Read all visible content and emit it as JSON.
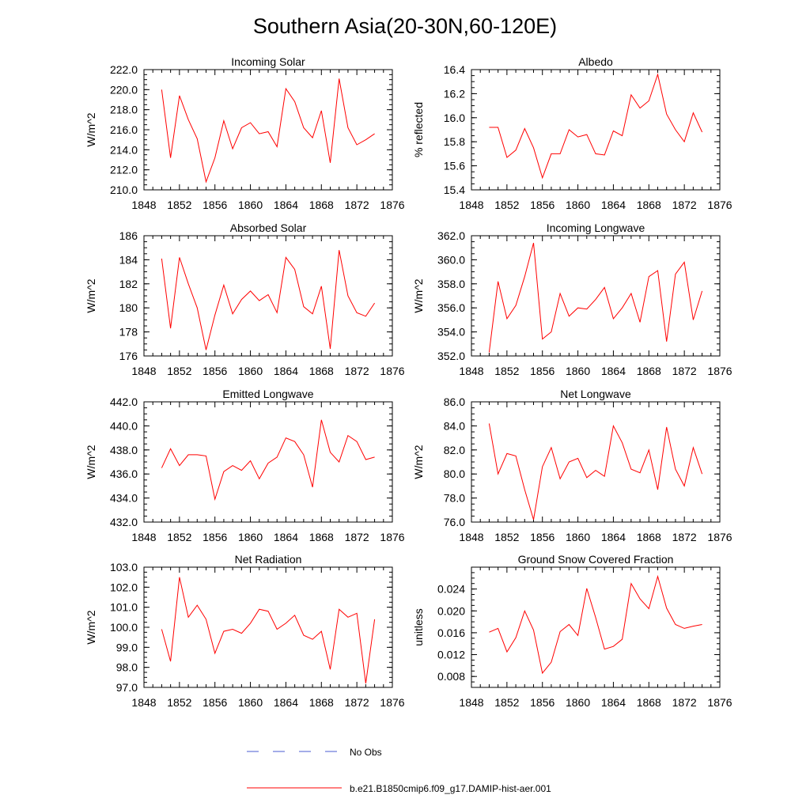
{
  "figure_title": "Southern Asia(20-30N,60-120E)",
  "legend": [
    {
      "label": "No Obs",
      "color": "#4a5bd0",
      "style": "dashed"
    },
    {
      "label": "b.e21.B1850cmip6.f09_g17.DAMIP-hist-aer.001",
      "color": "#ff0000",
      "style": "solid"
    }
  ],
  "chart_data": [
    {
      "type": "line",
      "title": "Incoming Solar",
      "ylabel": "W/m^2",
      "xlim": [
        1848,
        1876
      ],
      "ylim": [
        210,
        222
      ],
      "xticks": [
        "1848",
        "1852",
        "1856",
        "1860",
        "1864",
        "1868",
        "1872",
        "1876"
      ],
      "yticks": [
        "210.0",
        "212.0",
        "214.0",
        "216.0",
        "218.0",
        "220.0",
        "222.0"
      ],
      "x": [
        1850,
        1851,
        1852,
        1853,
        1854,
        1855,
        1856,
        1857,
        1858,
        1859,
        1860,
        1861,
        1862,
        1863,
        1864,
        1865,
        1866,
        1867,
        1868,
        1869,
        1870,
        1871,
        1872,
        1873,
        1874
      ],
      "series": [
        {
          "name": "b.e21.B1850cmip6.f09_g17.DAMIP-hist-aer.001",
          "color": "#ff0000",
          "values": [
            220.0,
            213.2,
            219.4,
            217.0,
            215.1,
            210.8,
            213.2,
            216.9,
            214.1,
            216.2,
            216.7,
            215.6,
            215.8,
            214.3,
            220.1,
            218.8,
            216.2,
            215.2,
            217.9,
            212.7,
            221.1,
            216.2,
            214.5,
            215.0,
            215.6
          ]
        }
      ]
    },
    {
      "type": "line",
      "title": "Albedo",
      "ylabel": "% reflected",
      "xlim": [
        1848,
        1876
      ],
      "ylim": [
        15.4,
        16.4
      ],
      "xticks": [
        "1848",
        "1852",
        "1856",
        "1860",
        "1864",
        "1868",
        "1872",
        "1876"
      ],
      "yticks": [
        "15.4",
        "15.6",
        "15.8",
        "16.0",
        "16.2",
        "16.4"
      ],
      "x": [
        1850,
        1851,
        1852,
        1853,
        1854,
        1855,
        1856,
        1857,
        1858,
        1859,
        1860,
        1861,
        1862,
        1863,
        1864,
        1865,
        1866,
        1867,
        1868,
        1869,
        1870,
        1871,
        1872,
        1873,
        1874
      ],
      "series": [
        {
          "name": "b.e21.B1850cmip6.f09_g17.DAMIP-hist-aer.001",
          "color": "#ff0000",
          "values": [
            15.92,
            15.92,
            15.67,
            15.73,
            15.91,
            15.75,
            15.5,
            15.7,
            15.7,
            15.9,
            15.84,
            15.86,
            15.7,
            15.69,
            15.89,
            15.85,
            16.19,
            16.08,
            16.14,
            16.36,
            16.03,
            15.9,
            15.8,
            16.04,
            15.88
          ]
        }
      ]
    },
    {
      "type": "line",
      "title": "Absorbed Solar",
      "ylabel": "W/m^2",
      "xlim": [
        1848,
        1876
      ],
      "ylim": [
        176,
        186
      ],
      "xticks": [
        "1848",
        "1852",
        "1856",
        "1860",
        "1864",
        "1868",
        "1872",
        "1876"
      ],
      "yticks": [
        "176",
        "178",
        "180",
        "182",
        "184",
        "186"
      ],
      "x": [
        1850,
        1851,
        1852,
        1853,
        1854,
        1855,
        1856,
        1857,
        1858,
        1859,
        1860,
        1861,
        1862,
        1863,
        1864,
        1865,
        1866,
        1867,
        1868,
        1869,
        1870,
        1871,
        1872,
        1873,
        1874
      ],
      "series": [
        {
          "name": "b.e21.B1850cmip6.f09_g17.DAMIP-hist-aer.001",
          "color": "#ff0000",
          "values": [
            184.1,
            178.3,
            184.2,
            182.0,
            180.0,
            176.5,
            179.4,
            181.9,
            179.5,
            180.7,
            181.4,
            180.6,
            181.1,
            179.6,
            184.2,
            183.2,
            180.1,
            179.5,
            181.8,
            176.6,
            184.8,
            181.0,
            179.6,
            179.3,
            180.4
          ]
        }
      ]
    },
    {
      "type": "line",
      "title": "Incoming Longwave",
      "ylabel": "W/m^2",
      "xlim": [
        1848,
        1876
      ],
      "ylim": [
        352,
        362
      ],
      "xticks": [
        "1848",
        "1852",
        "1856",
        "1860",
        "1864",
        "1868",
        "1872",
        "1876"
      ],
      "yticks": [
        "352.0",
        "354.0",
        "356.0",
        "358.0",
        "360.0",
        "362.0"
      ],
      "x": [
        1850,
        1851,
        1852,
        1853,
        1854,
        1855,
        1856,
        1857,
        1858,
        1859,
        1860,
        1861,
        1862,
        1863,
        1864,
        1865,
        1866,
        1867,
        1868,
        1869,
        1870,
        1871,
        1872,
        1873,
        1874
      ],
      "series": [
        {
          "name": "b.e21.B1850cmip6.f09_g17.DAMIP-hist-aer.001",
          "color": "#ff0000",
          "values": [
            352.3,
            358.2,
            355.1,
            356.2,
            358.6,
            361.4,
            353.4,
            354.0,
            357.2,
            355.3,
            356.0,
            355.9,
            356.7,
            357.7,
            355.1,
            356.0,
            357.2,
            354.8,
            358.6,
            359.1,
            353.2,
            358.8,
            359.8,
            355.0,
            357.4
          ]
        }
      ]
    },
    {
      "type": "line",
      "title": "Emitted Longwave",
      "ylabel": "W/m^2",
      "xlim": [
        1848,
        1876
      ],
      "ylim": [
        432,
        442
      ],
      "xticks": [
        "1848",
        "1852",
        "1856",
        "1860",
        "1864",
        "1868",
        "1872",
        "1876"
      ],
      "yticks": [
        "432.0",
        "434.0",
        "436.0",
        "438.0",
        "440.0",
        "442.0"
      ],
      "x": [
        1850,
        1851,
        1852,
        1853,
        1854,
        1855,
        1856,
        1857,
        1858,
        1859,
        1860,
        1861,
        1862,
        1863,
        1864,
        1865,
        1866,
        1867,
        1868,
        1869,
        1870,
        1871,
        1872,
        1873,
        1874
      ],
      "series": [
        {
          "name": "b.e21.B1850cmip6.f09_g17.DAMIP-hist-aer.001",
          "color": "#ff0000",
          "values": [
            436.5,
            438.1,
            436.7,
            437.6,
            437.6,
            437.5,
            433.9,
            436.2,
            436.7,
            436.3,
            437.1,
            435.6,
            436.9,
            437.4,
            439.0,
            438.7,
            437.6,
            434.9,
            440.5,
            437.8,
            437.0,
            439.2,
            438.7,
            437.2,
            437.4
          ]
        }
      ]
    },
    {
      "type": "line",
      "title": "Net Longwave",
      "ylabel": "W/m^2",
      "xlim": [
        1848,
        1876
      ],
      "ylim": [
        76,
        86
      ],
      "xticks": [
        "1848",
        "1852",
        "1856",
        "1860",
        "1864",
        "1868",
        "1872",
        "1876"
      ],
      "yticks": [
        "76.0",
        "78.0",
        "80.0",
        "82.0",
        "84.0",
        "86.0"
      ],
      "x": [
        1850,
        1851,
        1852,
        1853,
        1854,
        1855,
        1856,
        1857,
        1858,
        1859,
        1860,
        1861,
        1862,
        1863,
        1864,
        1865,
        1866,
        1867,
        1868,
        1869,
        1870,
        1871,
        1872,
        1873,
        1874
      ],
      "series": [
        {
          "name": "b.e21.B1850cmip6.f09_g17.DAMIP-hist-aer.001",
          "color": "#ff0000",
          "values": [
            84.2,
            80.0,
            81.7,
            81.5,
            78.7,
            76.2,
            80.6,
            82.2,
            79.6,
            81.0,
            81.3,
            79.7,
            80.3,
            79.8,
            84.0,
            82.6,
            80.4,
            80.1,
            82.0,
            78.7,
            83.9,
            80.4,
            79.0,
            82.2,
            80.0
          ]
        }
      ]
    },
    {
      "type": "line",
      "title": "Net Radiation",
      "ylabel": "W/m^2",
      "xlim": [
        1848,
        1876
      ],
      "ylim": [
        97,
        103
      ],
      "xticks": [
        "1848",
        "1852",
        "1856",
        "1860",
        "1864",
        "1868",
        "1872",
        "1876"
      ],
      "yticks": [
        "97.0",
        "98.0",
        "99.0",
        "100.0",
        "101.0",
        "102.0",
        "103.0"
      ],
      "x": [
        1850,
        1851,
        1852,
        1853,
        1854,
        1855,
        1856,
        1857,
        1858,
        1859,
        1860,
        1861,
        1862,
        1863,
        1864,
        1865,
        1866,
        1867,
        1868,
        1869,
        1870,
        1871,
        1872,
        1873,
        1874
      ],
      "series": [
        {
          "name": "b.e21.B1850cmip6.f09_g17.DAMIP-hist-aer.001",
          "color": "#ff0000",
          "values": [
            99.9,
            98.3,
            102.5,
            100.5,
            101.1,
            100.4,
            98.7,
            99.8,
            99.9,
            99.7,
            100.2,
            100.9,
            100.8,
            99.9,
            100.2,
            100.6,
            99.6,
            99.4,
            99.8,
            97.9,
            100.9,
            100.5,
            100.7,
            97.2,
            100.4
          ]
        }
      ]
    },
    {
      "type": "line",
      "title": "Ground Snow Covered Fraction",
      "ylabel": "unitless",
      "xlim": [
        1848,
        1876
      ],
      "ylim": [
        0.006,
        0.028
      ],
      "xticks": [
        "1848",
        "1852",
        "1856",
        "1860",
        "1864",
        "1868",
        "1872",
        "1876"
      ],
      "yticks": [
        "0.008",
        "0.012",
        "0.016",
        "0.020",
        "0.024"
      ],
      "ytick_values": [
        0.008,
        0.012,
        0.016,
        0.02,
        0.024
      ],
      "x": [
        1850,
        1851,
        1852,
        1853,
        1854,
        1855,
        1856,
        1857,
        1858,
        1859,
        1860,
        1861,
        1862,
        1863,
        1864,
        1865,
        1866,
        1867,
        1868,
        1869,
        1870,
        1871,
        1872,
        1873,
        1874
      ],
      "series": [
        {
          "name": "b.e21.B1850cmip6.f09_g17.DAMIP-hist-aer.001",
          "color": "#ff0000",
          "values": [
            0.0161,
            0.0168,
            0.0125,
            0.0151,
            0.02,
            0.0165,
            0.0086,
            0.0106,
            0.0162,
            0.0175,
            0.0155,
            0.0241,
            0.0188,
            0.013,
            0.0135,
            0.0148,
            0.025,
            0.0222,
            0.0204,
            0.0263,
            0.0205,
            0.0175,
            0.0168,
            0.0172,
            0.0175
          ]
        }
      ]
    }
  ]
}
